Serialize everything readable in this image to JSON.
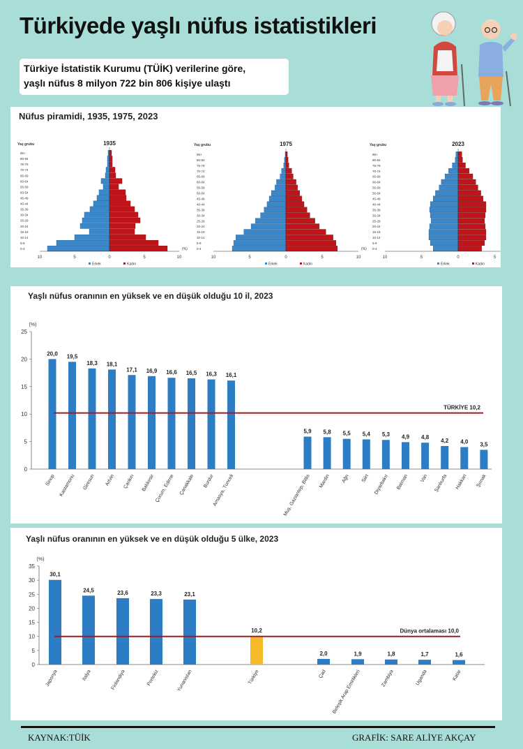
{
  "header": {
    "title": "Türkiyede yaşlı nüfus istatistikleri",
    "subtitle_line1": "Türkiye İstatistik Kurumu (TÜİK) verilerine göre,",
    "subtitle_line2": "yaşlı nüfus 8 milyon 722 bin 806 kişiye ulaştı"
  },
  "pyramid_panel": {
    "title": "Nüfus piramidi, 1935, 1975, 2023",
    "age_label": "Yaş grubu",
    "unit": "(%)",
    "male_label": "Erkek",
    "female_label": "Kadın",
    "male_color": "#3a87c9",
    "female_color": "#c0141b"
  },
  "chart1_panel": {
    "title": "Yaşlı nüfus oranının en yüksek ve en düşük olduğu 10 il, 2023"
  },
  "chart2_panel": {
    "title": "Yaşlı nüfus oranının en yüksek ve en düşük olduğu 5 ülke, 2023"
  },
  "footer": {
    "source": "KAYNAK:TÜİK",
    "credit": "GRAFİK: SARE ALİYE AKÇAY"
  },
  "icons": {
    "illustration": "elderly-couple-icon"
  },
  "chart_data": [
    {
      "type": "bar",
      "subtype": "population-pyramid",
      "title": "1935",
      "categories": [
        "0-4",
        "5-9",
        "10-14",
        "15-19",
        "20-24",
        "25-29",
        "30-34",
        "35-39",
        "40-44",
        "45-49",
        "50-54",
        "55-59",
        "60-64",
        "65-69",
        "70-74",
        "75-79",
        "80-84",
        "85+"
      ],
      "series": [
        {
          "name": "Erkek",
          "values": [
            8.9,
            7.6,
            5.0,
            2.9,
            4.2,
            3.9,
            3.6,
            2.8,
            2.3,
            1.8,
            1.5,
            0.9,
            1.2,
            0.6,
            0.5,
            0.3,
            0.3,
            0.2
          ]
        },
        {
          "name": "Kadın",
          "values": [
            8.3,
            7.0,
            5.2,
            3.6,
            3.7,
            4.4,
            4.1,
            3.6,
            3.0,
            2.4,
            2.3,
            1.3,
            1.8,
            0.9,
            0.8,
            0.4,
            0.4,
            0.3
          ]
        }
      ],
      "xlim": [
        -10,
        10
      ],
      "xticks": [
        "10",
        "5",
        "0",
        "5",
        "10"
      ]
    },
    {
      "type": "bar",
      "subtype": "population-pyramid",
      "title": "1975",
      "categories": [
        "0-4",
        "5-9",
        "10-14",
        "15-19",
        "20-24",
        "25-29",
        "30-34",
        "35-39",
        "40-44",
        "45-49",
        "50-54",
        "55-59",
        "60-64",
        "65-69",
        "70-74",
        "75-79",
        "80-84",
        "85+"
      ],
      "series": [
        {
          "name": "Erkek",
          "values": [
            7.4,
            7.2,
            6.9,
            5.8,
            4.8,
            4.2,
            3.5,
            3.0,
            2.6,
            2.3,
            2.0,
            1.5,
            1.3,
            0.8,
            0.6,
            0.3,
            0.2,
            0.1
          ]
        },
        {
          "name": "Kadın",
          "values": [
            7.1,
            6.9,
            6.5,
            5.5,
            4.6,
            4.0,
            3.3,
            2.9,
            2.5,
            2.2,
            1.9,
            1.6,
            1.4,
            1.0,
            0.8,
            0.4,
            0.3,
            0.2
          ]
        }
      ],
      "xlim": [
        -10,
        10
      ],
      "xticks": [
        "10",
        "5",
        "0",
        "5",
        "10"
      ]
    },
    {
      "type": "bar",
      "subtype": "population-pyramid",
      "title": "2023",
      "categories": [
        "0-4",
        "5-9",
        "10-14",
        "15-19",
        "20-24",
        "25-29",
        "30-34",
        "35-39",
        "40-44",
        "45-49",
        "50-54",
        "55-59",
        "60-64",
        "65-69",
        "70-74",
        "75-79",
        "80-84",
        "85+"
      ],
      "series": [
        {
          "name": "Erkek",
          "values": [
            3.4,
            3.8,
            4.0,
            4.0,
            3.9,
            3.7,
            3.8,
            3.9,
            3.8,
            3.4,
            3.1,
            2.6,
            2.3,
            1.8,
            1.3,
            0.8,
            0.4,
            0.3
          ]
        },
        {
          "name": "Kadın",
          "values": [
            3.2,
            3.6,
            3.8,
            3.8,
            3.7,
            3.6,
            3.7,
            3.8,
            3.8,
            3.4,
            3.1,
            2.7,
            2.4,
            2.0,
            1.5,
            1.0,
            0.6,
            0.5
          ]
        }
      ],
      "xlim": [
        -10,
        10
      ],
      "xticks": [
        "10",
        "5",
        "0",
        "5"
      ]
    },
    {
      "type": "bar",
      "title": "Yaşlı nüfus oranının en yüksek ve en düşük olduğu 10 il, 2023",
      "ylabel": "(%)",
      "ylim": [
        0,
        25
      ],
      "yticks": [
        0,
        5,
        10,
        15,
        20,
        25
      ],
      "categories": [
        "Sinop",
        "Kastamonu",
        "Giresun",
        "Artvin",
        "Çankırı",
        "Balıkesir",
        "Çorum, Edirne",
        "Çanakkale",
        "Burdur",
        "Amasya, Tunceli",
        "Muş, Gaziantep, Bitlis",
        "Mardin",
        "Ağrı",
        "Siirt",
        "Diyarbakır",
        "Batman",
        "Van",
        "Şanlıurfa",
        "Hakkari",
        "Şırnak"
      ],
      "values": [
        20.0,
        19.5,
        18.3,
        18.1,
        17.1,
        16.9,
        16.6,
        16.5,
        16.3,
        16.1,
        5.9,
        5.8,
        5.5,
        5.4,
        5.3,
        4.9,
        4.8,
        4.2,
        4.0,
        3.5
      ],
      "value_labels": [
        "20,0",
        "19,5",
        "18,3",
        "18,1",
        "17,1",
        "16,9",
        "16,6",
        "16,5",
        "16,3",
        "16,1",
        "5,9",
        "5,8",
        "5,5",
        "5,4",
        "5,3",
        "4,9",
        "4,8",
        "4,2",
        "4,0",
        "3,5"
      ],
      "reference_line": {
        "label": "TÜRKİYE  10,2",
        "value": 10.2,
        "color": "#a31a1f"
      },
      "bar_color": "#2d7dc4",
      "grid": false
    },
    {
      "type": "bar",
      "title": "Yaşlı nüfus oranının en yüksek ve en düşük olduğu 5 ülke, 2023",
      "ylabel": "(%)",
      "ylim": [
        0,
        35
      ],
      "yticks": [
        0,
        5,
        10,
        15,
        20,
        25,
        30,
        35
      ],
      "categories": [
        "Japonya",
        "İtalya",
        "Finlandiya",
        "Portekiz",
        "Yunanistan",
        "Türkiye",
        "Çad",
        "Birleşik Arap Emirlikleri",
        "Zambiya",
        "Uganda",
        "Katar"
      ],
      "values": [
        30.1,
        24.5,
        23.6,
        23.3,
        23.1,
        10.2,
        2.0,
        1.9,
        1.8,
        1.7,
        1.6
      ],
      "value_labels": [
        "30,1",
        "24,5",
        "23,6",
        "23,3",
        "23,1",
        "10,2",
        "2,0",
        "1,9",
        "1,8",
        "1,7",
        "1,6"
      ],
      "highlight": {
        "category": "Türkiye",
        "color": "#f6b928"
      },
      "reference_line": {
        "label": "Dünya ortalaması  10,0",
        "value": 10.0,
        "color": "#a31a1f"
      },
      "bar_color": "#2d7dc4",
      "grid": false
    }
  ]
}
